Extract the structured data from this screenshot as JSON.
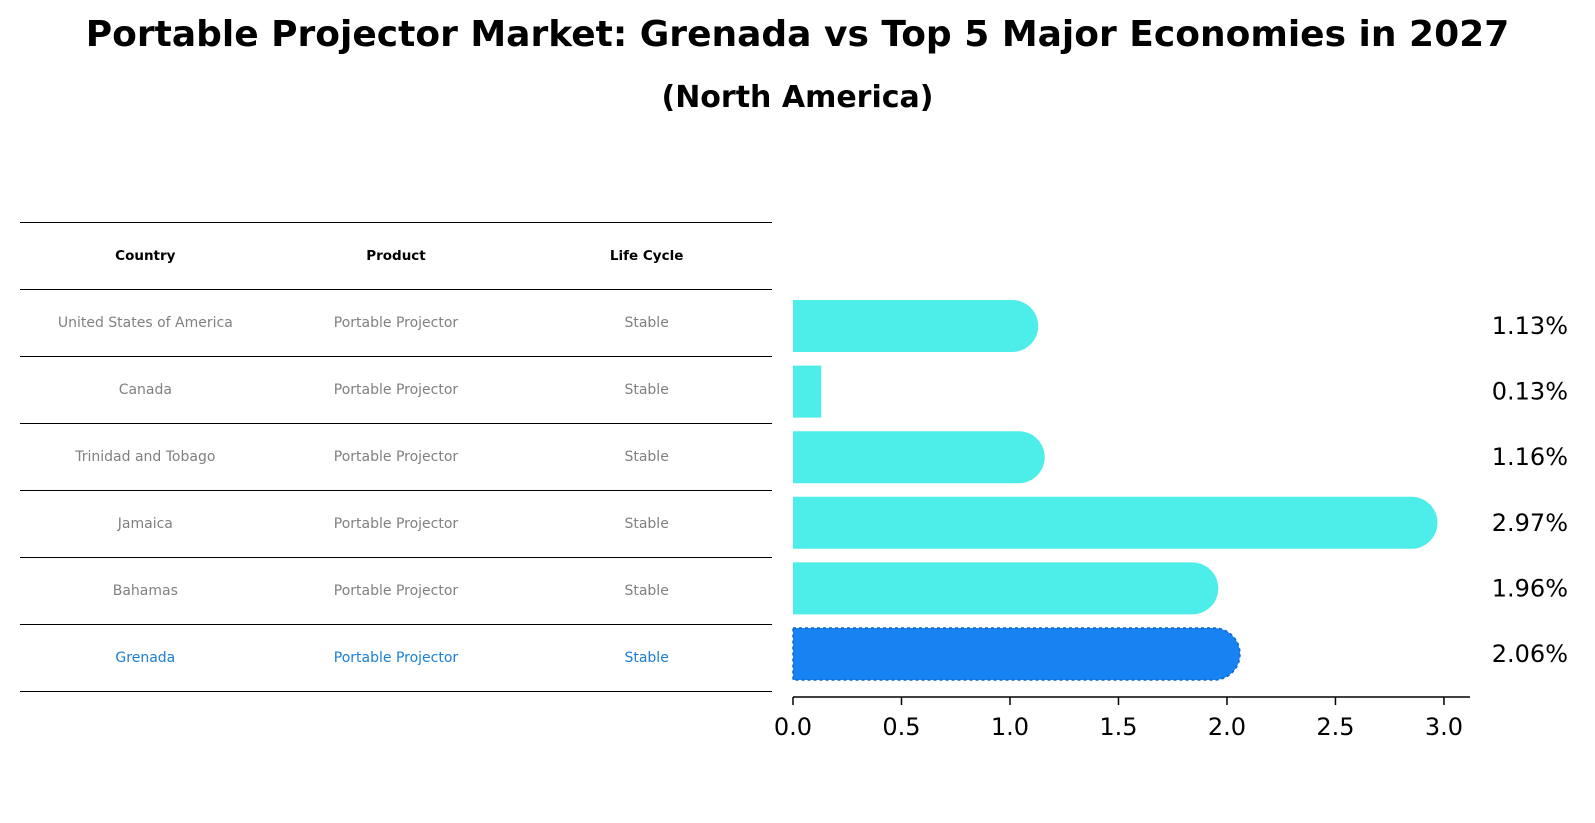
{
  "chart_data": {
    "type": "bar",
    "orientation": "horizontal",
    "title": "Portable Projector Market: Grenada vs Top 5 Major Economies in 2027",
    "subtitle": "(North America)",
    "categories": [
      "United States of America",
      "Canada",
      "Trinidad and Tobago",
      "Jamaica",
      "Bahamas",
      "Grenada"
    ],
    "values": [
      1.13,
      0.13,
      1.16,
      2.97,
      1.96,
      2.06
    ],
    "value_labels": [
      "1.13%",
      "0.13%",
      "1.16%",
      "2.97%",
      "1.96%",
      "2.06%"
    ],
    "highlight_index": 5,
    "xlim": [
      0,
      3.12
    ],
    "xticks": [
      0.0,
      0.5,
      1.0,
      1.5,
      2.0,
      2.5,
      3.0
    ],
    "xtick_labels": [
      "0.0",
      "0.5",
      "1.0",
      "1.5",
      "2.0",
      "2.5",
      "3.0"
    ],
    "grid": false,
    "colors": {
      "bar": "#4deeea",
      "highlight_bar": "#1782f2",
      "highlight_text": "#1a7fd6",
      "table_text": "#808080"
    }
  },
  "table": {
    "headers": [
      "Country",
      "Product",
      "Life Cycle"
    ],
    "rows": [
      [
        "United States of America",
        "Portable Projector",
        "Stable"
      ],
      [
        "Canada",
        "Portable Projector",
        "Stable"
      ],
      [
        "Trinidad and Tobago",
        "Portable Projector",
        "Stable"
      ],
      [
        "Jamaica",
        "Portable Projector",
        "Stable"
      ],
      [
        "Bahamas",
        "Portable Projector",
        "Stable"
      ],
      [
        "Grenada",
        "Portable Projector",
        "Stable"
      ]
    ]
  }
}
